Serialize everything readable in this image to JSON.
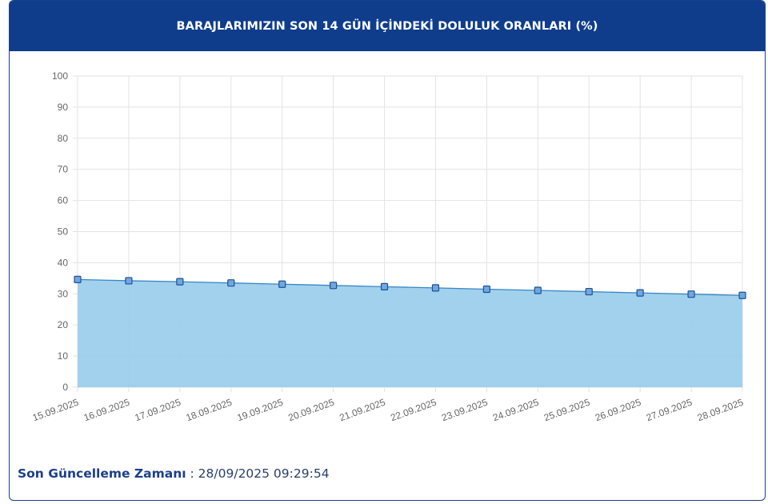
{
  "header": {
    "title": "BARAJLARIMIZIN SON 14 GÜN İÇİNDEKİ DOLULUK ORANLARI (%)"
  },
  "footer": {
    "label": "Son Güncelleme Zamanı",
    "separator": " : ",
    "value": "28/09/2025 09:29:54"
  },
  "colors": {
    "header_bg": "#0f3d8c",
    "area_fill": "#9ccfec",
    "line": "#3a86c4",
    "marker_fill": "#6fa8dc",
    "marker_stroke": "#1f4f9a",
    "grid": "#e3e3e3"
  },
  "chart_data": {
    "type": "area",
    "title": "BARAJLARIMIZIN SON 14 GÜN İÇİNDEKİ DOLULUK ORANLARI (%)",
    "xlabel": "",
    "ylabel": "",
    "ylim": [
      0,
      100
    ],
    "yticks": [
      0,
      10,
      20,
      30,
      40,
      50,
      60,
      70,
      80,
      90,
      100
    ],
    "grid": true,
    "categories": [
      "15.09.2025",
      "16.09.2025",
      "17.09.2025",
      "18.09.2025",
      "19.09.2025",
      "20.09.2025",
      "21.09.2025",
      "22.09.2025",
      "23.09.2025",
      "24.09.2025",
      "25.09.2025",
      "26.09.2025",
      "27.09.2025",
      "28.09.2025"
    ],
    "values": [
      34.6,
      34.2,
      33.9,
      33.5,
      33.1,
      32.7,
      32.3,
      31.9,
      31.5,
      31.1,
      30.7,
      30.3,
      29.9,
      29.5
    ]
  }
}
